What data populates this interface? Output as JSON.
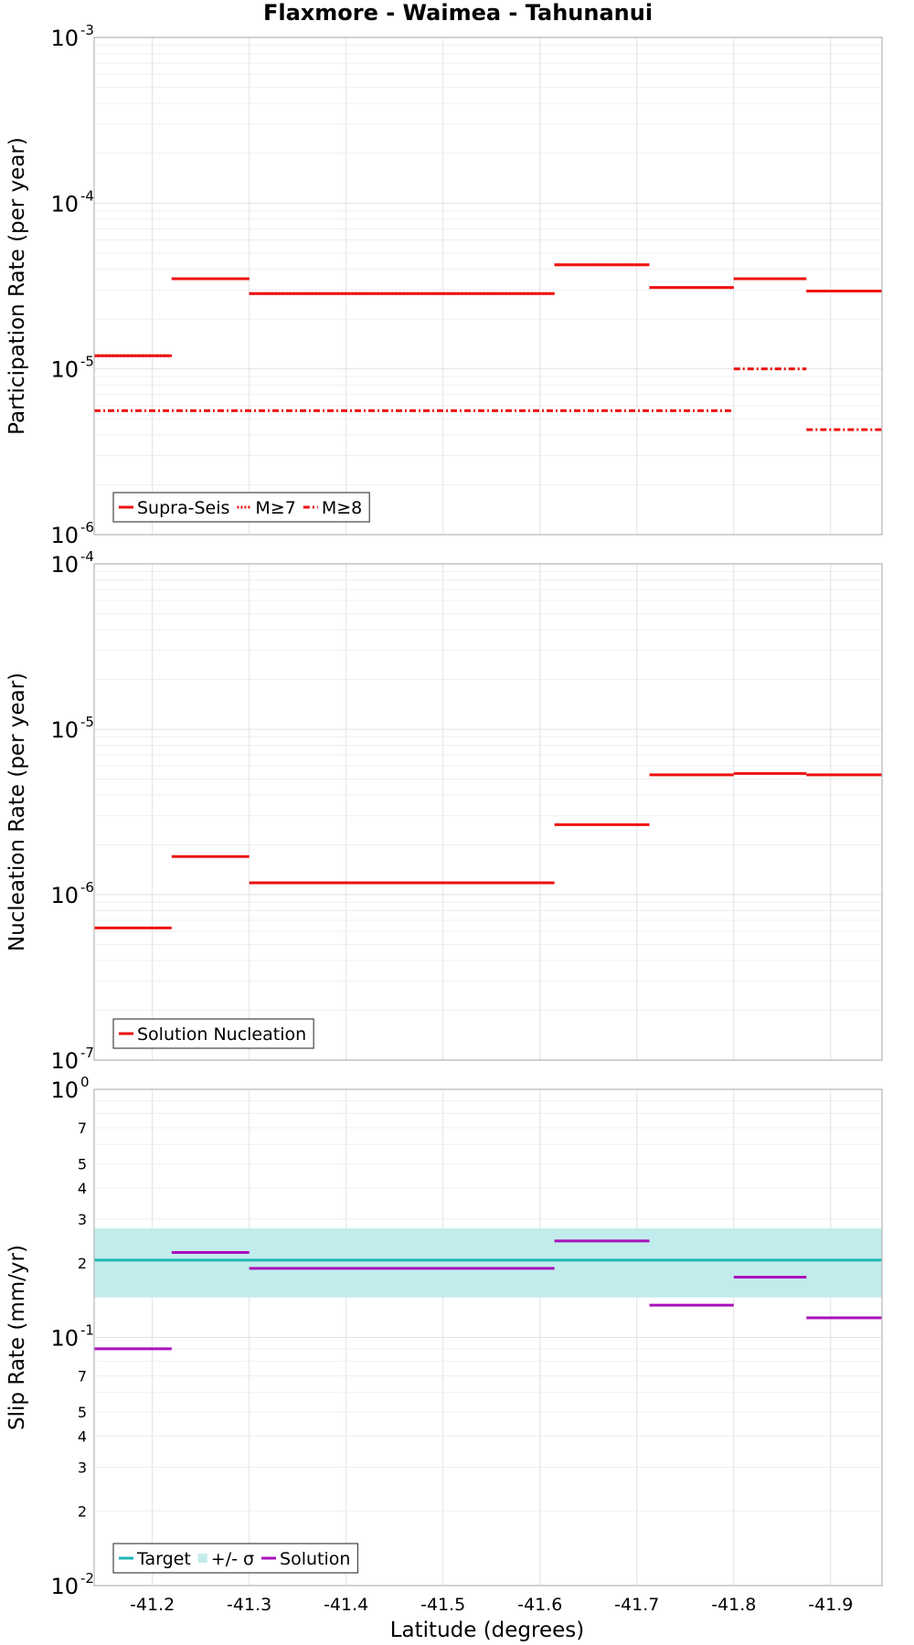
{
  "chart_data": {
    "type": "line",
    "title": "Flaxmore - Waimea - Tahunanui",
    "xlabel": "Latitude (degrees)",
    "x_ticks": [
      "-41.2",
      "-41.3",
      "-41.4",
      "-41.5",
      "-41.6",
      "-41.7",
      "-41.8",
      "-41.9"
    ],
    "x_tick_values": [
      -41.2,
      -41.3,
      -41.4,
      -41.5,
      -41.6,
      -41.7,
      -41.8,
      -41.9
    ],
    "xlim": [
      -41.14,
      -41.953
    ],
    "colors": {
      "red": "#ee1111",
      "teal": "#1fb5b5",
      "band": "#c2ecec",
      "purple": "#aa11bb"
    },
    "panels": [
      {
        "name": "participation",
        "ylabel": "Participation Rate (per year)",
        "scale": "log",
        "ylim_exp": [
          -6,
          -3
        ],
        "major_exps": [
          -6,
          -5,
          -4,
          -3
        ],
        "y_tick_labels": [
          {
            "base": "10",
            "exp": "-6"
          },
          {
            "base": "10",
            "exp": "-5"
          },
          {
            "base": "10",
            "exp": "-4"
          },
          {
            "base": "10",
            "exp": "-3"
          }
        ],
        "series": [
          {
            "name": "Supra-Seis",
            "style": "solid",
            "segments": [
              {
                "x0": -41.14,
                "x1": -41.22,
                "y": 1.2e-05
              },
              {
                "x0": -41.22,
                "x1": -41.3,
                "y": 3.5e-05
              },
              {
                "x0": -41.3,
                "x1": -41.615,
                "y": 2.85e-05
              },
              {
                "x0": -41.615,
                "x1": -41.713,
                "y": 4.25e-05
              },
              {
                "x0": -41.713,
                "x1": -41.8,
                "y": 3.1e-05
              },
              {
                "x0": -41.8,
                "x1": -41.875,
                "y": 3.5e-05
              },
              {
                "x0": -41.875,
                "x1": -41.953,
                "y": 2.95e-05
              }
            ]
          },
          {
            "name": "M≥7",
            "style": "dotted",
            "segments": [
              {
                "x0": -41.14,
                "x1": -41.22,
                "y": 1.2e-05
              },
              {
                "x0": -41.22,
                "x1": -41.3,
                "y": 3.5e-05
              },
              {
                "x0": -41.3,
                "x1": -41.615,
                "y": 2.85e-05
              },
              {
                "x0": -41.615,
                "x1": -41.713,
                "y": 4.25e-05
              },
              {
                "x0": -41.713,
                "x1": -41.8,
                "y": 3.1e-05
              },
              {
                "x0": -41.8,
                "x1": -41.875,
                "y": 3.5e-05
              },
              {
                "x0": -41.875,
                "x1": -41.953,
                "y": 2.95e-05
              }
            ]
          },
          {
            "name": "M≥8",
            "style": "dashdot",
            "segments": [
              {
                "x0": -41.14,
                "x1": -41.8,
                "y": 5.6e-06
              },
              {
                "x0": -41.8,
                "x1": -41.875,
                "y": 1e-05
              },
              {
                "x0": -41.875,
                "x1": -41.953,
                "y": 4.3e-06
              }
            ]
          }
        ],
        "legend": [
          "Supra-Seis",
          "M≥7",
          "M≥8"
        ]
      },
      {
        "name": "nucleation",
        "ylabel": "Nucleation Rate (per year)",
        "scale": "log",
        "ylim_exp": [
          -7,
          -4
        ],
        "major_exps": [
          -7,
          -6,
          -5,
          -4
        ],
        "y_tick_labels": [
          {
            "base": "10",
            "exp": "-7"
          },
          {
            "base": "10",
            "exp": "-6"
          },
          {
            "base": "10",
            "exp": "-5"
          },
          {
            "base": "10",
            "exp": "-4"
          }
        ],
        "series": [
          {
            "name": "Solution Nucleation",
            "style": "solid",
            "segments": [
              {
                "x0": -41.14,
                "x1": -41.22,
                "y": 6.3e-07
              },
              {
                "x0": -41.22,
                "x1": -41.3,
                "y": 1.7e-06
              },
              {
                "x0": -41.3,
                "x1": -41.615,
                "y": 1.18e-06
              },
              {
                "x0": -41.615,
                "x1": -41.713,
                "y": 2.65e-06
              },
              {
                "x0": -41.713,
                "x1": -41.8,
                "y": 5.3e-06
              },
              {
                "x0": -41.8,
                "x1": -41.875,
                "y": 5.4e-06
              },
              {
                "x0": -41.875,
                "x1": -41.953,
                "y": 5.3e-06
              }
            ]
          }
        ],
        "legend": [
          "Solution Nucleation"
        ]
      },
      {
        "name": "slip",
        "ylabel": "Slip Rate (mm/yr)",
        "scale": "log",
        "ylim_exp": [
          -2,
          0
        ],
        "major_exps": [
          -2,
          -1,
          0
        ],
        "y_tick_labels": [
          {
            "base": "10",
            "exp": "-2"
          },
          {
            "base": "10",
            "exp": "-1"
          },
          {
            "base": "10",
            "exp": "0"
          }
        ],
        "minor_labels": [
          "2",
          "3",
          "4",
          "5",
          "7"
        ],
        "band": {
          "low": 0.145,
          "high": 0.275
        },
        "target": 0.205,
        "series": [
          {
            "name": "Solution",
            "style": "solid",
            "segments": [
              {
                "x0": -41.14,
                "x1": -41.22,
                "y": 0.09
              },
              {
                "x0": -41.22,
                "x1": -41.3,
                "y": 0.22
              },
              {
                "x0": -41.3,
                "x1": -41.615,
                "y": 0.19
              },
              {
                "x0": -41.615,
                "x1": -41.713,
                "y": 0.245
              },
              {
                "x0": -41.713,
                "x1": -41.8,
                "y": 0.135
              },
              {
                "x0": -41.8,
                "x1": -41.875,
                "y": 0.175
              },
              {
                "x0": -41.875,
                "x1": -41.953,
                "y": 0.12
              }
            ]
          }
        ],
        "legend": [
          "Target",
          "+/- σ",
          "Solution"
        ]
      }
    ]
  }
}
